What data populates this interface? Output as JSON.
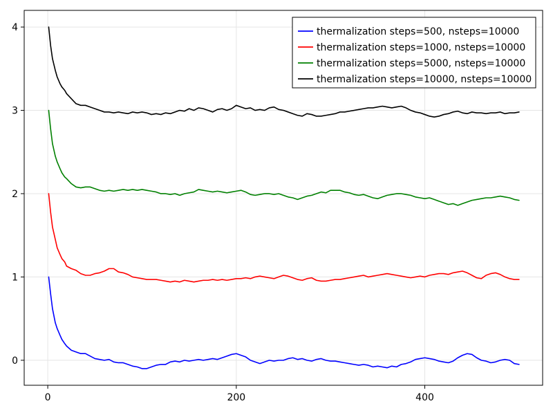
{
  "chart_data": {
    "type": "line",
    "title": "",
    "xlabel": "",
    "ylabel": "",
    "xlim": [
      -25,
      525
    ],
    "ylim": [
      -0.3,
      4.2
    ],
    "grid": true,
    "legend_position": "top-right",
    "x_ticks": [
      0,
      200,
      400
    ],
    "y_ticks": [
      0,
      1,
      2,
      3,
      4
    ],
    "x_tick_labels": [
      "0",
      "200",
      "400"
    ],
    "y_tick_labels": [
      "0",
      "1",
      "2",
      "3",
      "4"
    ],
    "series": [
      {
        "name": "thermalization steps=500, nsteps=10000",
        "color": "#0000ff",
        "x": [
          1,
          3,
          5,
          8,
          10,
          13,
          15,
          18,
          20,
          25,
          30,
          35,
          40,
          45,
          50,
          55,
          60,
          65,
          70,
          75,
          80,
          85,
          90,
          95,
          100,
          105,
          110,
          115,
          120,
          125,
          130,
          135,
          140,
          145,
          150,
          155,
          160,
          165,
          170,
          175,
          180,
          185,
          190,
          195,
          200,
          205,
          210,
          215,
          220,
          225,
          230,
          235,
          240,
          245,
          250,
          255,
          260,
          265,
          270,
          275,
          280,
          285,
          290,
          295,
          300,
          305,
          310,
          315,
          320,
          325,
          330,
          335,
          340,
          345,
          350,
          355,
          360,
          365,
          370,
          375,
          380,
          385,
          390,
          395,
          400,
          405,
          410,
          415,
          420,
          425,
          430,
          435,
          440,
          445,
          450,
          455,
          460,
          465,
          470,
          475,
          480,
          485,
          490,
          495,
          500
        ],
        "y": [
          1.0,
          0.8,
          0.62,
          0.45,
          0.38,
          0.3,
          0.25,
          0.2,
          0.17,
          0.12,
          0.1,
          0.08,
          0.08,
          0.05,
          0.02,
          0.01,
          0.0,
          0.01,
          -0.02,
          -0.03,
          -0.03,
          -0.05,
          -0.07,
          -0.08,
          -0.1,
          -0.1,
          -0.08,
          -0.06,
          -0.05,
          -0.05,
          -0.02,
          -0.01,
          -0.02,
          0.0,
          -0.01,
          0.0,
          0.01,
          0.0,
          0.01,
          0.02,
          0.01,
          0.03,
          0.05,
          0.07,
          0.08,
          0.06,
          0.04,
          0.0,
          -0.02,
          -0.04,
          -0.02,
          0.0,
          -0.01,
          0.0,
          0.0,
          0.02,
          0.03,
          0.01,
          0.02,
          0.0,
          -0.01,
          0.01,
          0.02,
          0.0,
          -0.01,
          -0.01,
          -0.02,
          -0.03,
          -0.04,
          -0.05,
          -0.06,
          -0.05,
          -0.06,
          -0.08,
          -0.07,
          -0.08,
          -0.09,
          -0.07,
          -0.08,
          -0.05,
          -0.04,
          -0.02,
          0.01,
          0.02,
          0.03,
          0.02,
          0.01,
          -0.01,
          -0.02,
          -0.03,
          -0.01,
          0.03,
          0.06,
          0.08,
          0.07,
          0.03,
          0.0,
          -0.01,
          -0.03,
          -0.02,
          0.0,
          0.01,
          0.0,
          -0.04,
          -0.05
        ]
      },
      {
        "name": "thermalization steps=1000, nsteps=10000",
        "color": "#ff0000",
        "x": [
          1,
          3,
          5,
          8,
          10,
          13,
          15,
          18,
          20,
          25,
          30,
          35,
          40,
          45,
          50,
          55,
          60,
          65,
          70,
          75,
          80,
          85,
          90,
          95,
          100,
          105,
          110,
          115,
          120,
          125,
          130,
          135,
          140,
          145,
          150,
          155,
          160,
          165,
          170,
          175,
          180,
          185,
          190,
          195,
          200,
          205,
          210,
          215,
          220,
          225,
          230,
          235,
          240,
          245,
          250,
          255,
          260,
          265,
          270,
          275,
          280,
          285,
          290,
          295,
          300,
          305,
          310,
          315,
          320,
          325,
          330,
          335,
          340,
          345,
          350,
          355,
          360,
          365,
          370,
          375,
          380,
          385,
          390,
          395,
          400,
          405,
          410,
          415,
          420,
          425,
          430,
          435,
          440,
          445,
          450,
          455,
          460,
          465,
          470,
          475,
          480,
          485,
          490,
          495,
          500
        ],
        "y": [
          2.0,
          1.78,
          1.6,
          1.45,
          1.35,
          1.27,
          1.22,
          1.18,
          1.13,
          1.1,
          1.08,
          1.04,
          1.02,
          1.02,
          1.04,
          1.05,
          1.07,
          1.1,
          1.1,
          1.06,
          1.05,
          1.03,
          1.0,
          0.99,
          0.98,
          0.97,
          0.97,
          0.97,
          0.96,
          0.95,
          0.94,
          0.95,
          0.94,
          0.96,
          0.95,
          0.94,
          0.95,
          0.96,
          0.96,
          0.97,
          0.96,
          0.97,
          0.96,
          0.97,
          0.98,
          0.98,
          0.99,
          0.98,
          1.0,
          1.01,
          1.0,
          0.99,
          0.98,
          1.0,
          1.02,
          1.01,
          0.99,
          0.97,
          0.96,
          0.98,
          0.99,
          0.96,
          0.95,
          0.95,
          0.96,
          0.97,
          0.97,
          0.98,
          0.99,
          1.0,
          1.01,
          1.02,
          1.0,
          1.01,
          1.02,
          1.03,
          1.04,
          1.03,
          1.02,
          1.01,
          1.0,
          0.99,
          1.0,
          1.01,
          1.0,
          1.02,
          1.03,
          1.04,
          1.04,
          1.03,
          1.05,
          1.06,
          1.07,
          1.05,
          1.02,
          0.99,
          0.98,
          1.02,
          1.04,
          1.05,
          1.03,
          1.0,
          0.98,
          0.97,
          0.97
        ]
      },
      {
        "name": "thermalization steps=5000, nsteps=10000",
        "color": "#008000",
        "x": [
          1,
          3,
          5,
          8,
          10,
          13,
          15,
          18,
          20,
          25,
          30,
          35,
          40,
          45,
          50,
          55,
          60,
          65,
          70,
          75,
          80,
          85,
          90,
          95,
          100,
          105,
          110,
          115,
          120,
          125,
          130,
          135,
          140,
          145,
          150,
          155,
          160,
          165,
          170,
          175,
          180,
          185,
          190,
          195,
          200,
          205,
          210,
          215,
          220,
          225,
          230,
          235,
          240,
          245,
          250,
          255,
          260,
          265,
          270,
          275,
          280,
          285,
          290,
          295,
          300,
          305,
          310,
          315,
          320,
          325,
          330,
          335,
          340,
          345,
          350,
          355,
          360,
          365,
          370,
          375,
          380,
          385,
          390,
          395,
          400,
          405,
          410,
          415,
          420,
          425,
          430,
          435,
          440,
          445,
          450,
          455,
          460,
          465,
          470,
          475,
          480,
          485,
          490,
          495,
          500
        ],
        "y": [
          3.0,
          2.78,
          2.6,
          2.45,
          2.38,
          2.3,
          2.25,
          2.2,
          2.18,
          2.12,
          2.08,
          2.07,
          2.08,
          2.08,
          2.06,
          2.04,
          2.03,
          2.04,
          2.03,
          2.04,
          2.05,
          2.04,
          2.05,
          2.04,
          2.05,
          2.04,
          2.03,
          2.02,
          2.0,
          2.0,
          1.99,
          2.0,
          1.98,
          2.0,
          2.01,
          2.02,
          2.05,
          2.04,
          2.03,
          2.02,
          2.03,
          2.02,
          2.01,
          2.02,
          2.03,
          2.04,
          2.02,
          1.99,
          1.98,
          1.99,
          2.0,
          2.0,
          1.99,
          2.0,
          1.98,
          1.96,
          1.95,
          1.93,
          1.95,
          1.97,
          1.98,
          2.0,
          2.02,
          2.01,
          2.04,
          2.04,
          2.04,
          2.02,
          2.01,
          1.99,
          1.98,
          1.99,
          1.97,
          1.95,
          1.94,
          1.96,
          1.98,
          1.99,
          2.0,
          2.0,
          1.99,
          1.98,
          1.96,
          1.95,
          1.94,
          1.95,
          1.93,
          1.91,
          1.89,
          1.87,
          1.88,
          1.86,
          1.88,
          1.9,
          1.92,
          1.93,
          1.94,
          1.95,
          1.95,
          1.96,
          1.97,
          1.96,
          1.95,
          1.93,
          1.92
        ]
      },
      {
        "name": "thermalization steps=10000, nsteps=10000",
        "color": "#000000",
        "x": [
          1,
          3,
          5,
          8,
          10,
          13,
          15,
          18,
          20,
          25,
          30,
          35,
          40,
          45,
          50,
          55,
          60,
          65,
          70,
          75,
          80,
          85,
          90,
          95,
          100,
          105,
          110,
          115,
          120,
          125,
          130,
          135,
          140,
          145,
          150,
          155,
          160,
          165,
          170,
          175,
          180,
          185,
          190,
          195,
          200,
          205,
          210,
          215,
          220,
          225,
          230,
          235,
          240,
          245,
          250,
          255,
          260,
          265,
          270,
          275,
          280,
          285,
          290,
          295,
          300,
          305,
          310,
          315,
          320,
          325,
          330,
          335,
          340,
          345,
          350,
          355,
          360,
          365,
          370,
          375,
          380,
          385,
          390,
          395,
          400,
          405,
          410,
          415,
          420,
          425,
          430,
          435,
          440,
          445,
          450,
          455,
          460,
          465,
          470,
          475,
          480,
          485,
          490,
          495,
          500
        ],
        "y": [
          4.0,
          3.78,
          3.62,
          3.48,
          3.4,
          3.32,
          3.28,
          3.24,
          3.2,
          3.14,
          3.08,
          3.06,
          3.06,
          3.04,
          3.02,
          3.0,
          2.98,
          2.98,
          2.97,
          2.98,
          2.97,
          2.96,
          2.98,
          2.97,
          2.98,
          2.97,
          2.95,
          2.96,
          2.95,
          2.97,
          2.96,
          2.98,
          3.0,
          2.99,
          3.02,
          3.0,
          3.03,
          3.02,
          3.0,
          2.98,
          3.01,
          3.02,
          3.0,
          3.02,
          3.06,
          3.04,
          3.02,
          3.03,
          3.0,
          3.01,
          3.0,
          3.03,
          3.04,
          3.01,
          3.0,
          2.98,
          2.96,
          2.94,
          2.93,
          2.96,
          2.95,
          2.93,
          2.93,
          2.94,
          2.95,
          2.96,
          2.98,
          2.98,
          2.99,
          3.0,
          3.01,
          3.02,
          3.03,
          3.03,
          3.04,
          3.05,
          3.04,
          3.03,
          3.04,
          3.05,
          3.03,
          3.0,
          2.98,
          2.97,
          2.95,
          2.93,
          2.92,
          2.93,
          2.95,
          2.96,
          2.98,
          2.99,
          2.97,
          2.96,
          2.98,
          2.97,
          2.97,
          2.96,
          2.97,
          2.97,
          2.98,
          2.96,
          2.97,
          2.97,
          2.98
        ]
      }
    ]
  }
}
